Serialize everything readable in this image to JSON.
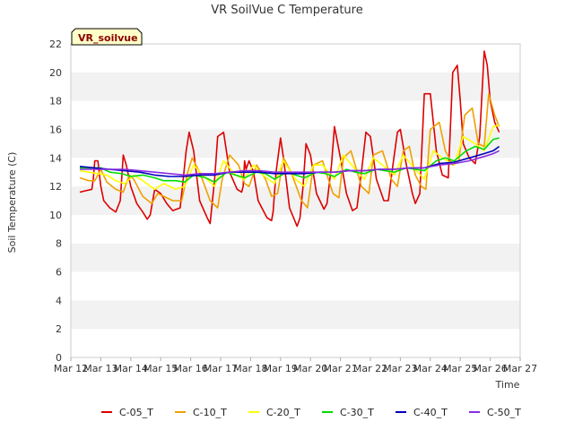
{
  "chart_data": {
    "type": "line",
    "title": "VR SoilVue C Temperature",
    "site_label": "VR_soilvue",
    "xlabel": "Time",
    "ylabel": "Soil Temperature (C)",
    "ylim": [
      0,
      22
    ],
    "yticks": [
      0,
      2,
      4,
      6,
      8,
      10,
      12,
      14,
      16,
      18,
      20,
      22
    ],
    "xlim": [
      12,
      27
    ],
    "x_unit": "day of March",
    "xtick_values": [
      12,
      13,
      14,
      15,
      16,
      17,
      18,
      19,
      20,
      21,
      22,
      23,
      24,
      25,
      26,
      27
    ],
    "xtick_labels": [
      "Mar 12",
      "Mar 13",
      "Mar 14",
      "Mar 15",
      "Mar 16",
      "Mar 17",
      "Mar 18",
      "Mar 19",
      "Mar 20",
      "Mar 21",
      "Mar 22",
      "Mar 23",
      "Mar 24",
      "Mar 25",
      "Mar 26",
      "Mar 27"
    ],
    "grid": "horizontal bands",
    "legend_position": "bottom",
    "series": [
      {
        "name": "C-05_T",
        "color": "#dd0000",
        "x": [
          12.3,
          12.5,
          12.7,
          12.75,
          12.8,
          12.9,
          13.0,
          13.1,
          13.3,
          13.5,
          13.65,
          13.75,
          13.85,
          14.0,
          14.2,
          14.4,
          14.55,
          14.65,
          14.8,
          15.0,
          15.2,
          15.4,
          15.65,
          15.85,
          15.95,
          16.1,
          16.3,
          16.55,
          16.65,
          16.8,
          16.9,
          17.1,
          17.3,
          17.55,
          17.7,
          17.75,
          17.8,
          17.85,
          17.95,
          18.1,
          18.25,
          18.45,
          18.55,
          18.7,
          18.75,
          18.85,
          19.0,
          19.1,
          19.3,
          19.55,
          19.65,
          19.75,
          19.85,
          20.0,
          20.2,
          20.45,
          20.55,
          20.7,
          20.8,
          21.0,
          21.2,
          21.4,
          21.55,
          21.7,
          21.85,
          22.0,
          22.2,
          22.45,
          22.6,
          22.75,
          22.9,
          23.0,
          23.2,
          23.4,
          23.5,
          23.65,
          23.8,
          24.0,
          24.2,
          24.4,
          24.6,
          24.75,
          24.9,
          25.0,
          25.1,
          25.3,
          25.5,
          25.65,
          25.8,
          25.9,
          26.0,
          26.15,
          26.3
        ],
        "values": [
          11.6,
          11.7,
          11.8,
          12.5,
          13.8,
          13.8,
          12.0,
          11.0,
          10.5,
          10.2,
          11.0,
          14.2,
          13.5,
          12.0,
          10.8,
          10.2,
          9.7,
          10.0,
          11.8,
          11.5,
          10.8,
          10.3,
          10.5,
          14.5,
          15.8,
          14.5,
          11.0,
          9.8,
          9.4,
          12.5,
          15.5,
          15.8,
          13.0,
          11.8,
          11.6,
          12.0,
          13.8,
          13.2,
          13.8,
          13.0,
          11.0,
          10.2,
          9.8,
          9.6,
          10.2,
          13.0,
          15.4,
          14.0,
          10.5,
          9.2,
          9.8,
          12.0,
          15.0,
          14.2,
          11.5,
          10.4,
          10.8,
          13.5,
          16.2,
          14.0,
          11.5,
          10.3,
          10.5,
          13.0,
          15.8,
          15.5,
          12.5,
          11.0,
          11.0,
          13.5,
          15.8,
          16.0,
          13.5,
          11.5,
          10.8,
          11.5,
          18.5,
          18.5,
          14.5,
          12.8,
          12.6,
          20.0,
          20.5,
          18.0,
          15.0,
          14.0,
          13.6,
          15.5,
          21.5,
          20.5,
          18.0,
          16.5,
          15.8
        ]
      },
      {
        "name": "C-10_T",
        "color": "#f0a000",
        "x": [
          12.3,
          12.6,
          12.8,
          13.0,
          13.2,
          13.5,
          13.75,
          13.95,
          14.1,
          14.4,
          14.7,
          14.9,
          15.1,
          15.4,
          15.7,
          15.9,
          16.05,
          16.3,
          16.65,
          16.9,
          17.05,
          17.3,
          17.6,
          17.8,
          17.95,
          18.2,
          18.5,
          18.7,
          18.9,
          19.1,
          19.35,
          19.7,
          19.9,
          20.1,
          20.4,
          20.75,
          20.95,
          21.1,
          21.35,
          21.7,
          21.95,
          22.1,
          22.4,
          22.7,
          22.9,
          23.1,
          23.3,
          23.5,
          23.7,
          23.85,
          24.0,
          24.3,
          24.5,
          24.75,
          24.95,
          25.15,
          25.4,
          25.6,
          25.8,
          25.95,
          26.15,
          26.3
        ],
        "values": [
          12.6,
          12.4,
          12.4,
          13.2,
          12.3,
          11.8,
          11.6,
          12.8,
          12.5,
          11.3,
          10.8,
          11.5,
          11.3,
          11.0,
          11.0,
          13.0,
          14.0,
          13.0,
          11.0,
          10.5,
          12.5,
          14.2,
          13.5,
          12.2,
          12.0,
          13.5,
          12.5,
          11.3,
          11.5,
          14.0,
          13.0,
          11.0,
          10.5,
          13.5,
          13.8,
          11.5,
          11.2,
          14.0,
          14.5,
          12.0,
          11.5,
          14.2,
          14.5,
          12.5,
          12.0,
          14.5,
          14.8,
          12.8,
          12.0,
          11.8,
          16.0,
          16.5,
          14.5,
          13.5,
          13.8,
          17.0,
          17.5,
          15.0,
          14.8,
          18.5,
          17.0,
          16.2
        ]
      },
      {
        "name": "C-20_T",
        "color": "#ffff00",
        "x": [
          12.3,
          12.6,
          12.9,
          13.2,
          13.5,
          13.8,
          14.1,
          14.4,
          14.8,
          15.1,
          15.5,
          15.8,
          16.1,
          16.4,
          16.8,
          17.1,
          17.5,
          17.8,
          18.1,
          18.4,
          18.8,
          19.1,
          19.5,
          19.8,
          20.1,
          20.4,
          20.8,
          21.1,
          21.5,
          21.8,
          22.1,
          22.4,
          22.8,
          23.1,
          23.5,
          23.8,
          24.1,
          24.4,
          24.8,
          25.1,
          25.5,
          25.8,
          26.1,
          26.3
        ],
        "values": [
          13.1,
          13.0,
          12.9,
          12.8,
          12.4,
          12.2,
          12.8,
          12.4,
          11.8,
          12.2,
          11.8,
          12.0,
          13.5,
          12.8,
          12.0,
          13.8,
          12.8,
          12.5,
          13.5,
          12.8,
          12.2,
          13.8,
          12.5,
          12.0,
          13.5,
          13.5,
          12.5,
          14.2,
          13.2,
          12.5,
          14.0,
          13.5,
          12.8,
          14.2,
          13.2,
          12.5,
          14.5,
          14.0,
          13.5,
          15.5,
          15.0,
          14.5,
          16.2,
          16.3
        ]
      },
      {
        "name": "C-30_T",
        "color": "#00dd00",
        "x": [
          12.3,
          12.6,
          13.0,
          13.3,
          13.7,
          14.0,
          14.4,
          14.8,
          15.1,
          15.5,
          15.8,
          16.1,
          16.5,
          16.8,
          17.2,
          17.5,
          17.8,
          18.2,
          18.5,
          18.8,
          19.2,
          19.5,
          19.8,
          20.2,
          20.5,
          20.8,
          21.2,
          21.5,
          21.8,
          22.2,
          22.5,
          22.8,
          23.2,
          23.5,
          23.8,
          24.2,
          24.5,
          24.8,
          25.2,
          25.5,
          25.8,
          26.1,
          26.3
        ],
        "values": [
          13.3,
          13.3,
          13.3,
          13.0,
          12.9,
          12.7,
          12.8,
          12.6,
          12.4,
          12.4,
          12.3,
          12.8,
          12.6,
          12.3,
          13.0,
          12.8,
          12.6,
          13.0,
          12.9,
          12.5,
          13.0,
          12.8,
          12.6,
          13.0,
          12.9,
          12.7,
          13.2,
          13.0,
          12.9,
          13.2,
          13.1,
          13.0,
          13.3,
          13.2,
          13.1,
          13.8,
          14.0,
          13.8,
          14.5,
          14.8,
          14.6,
          15.3,
          15.4
        ]
      },
      {
        "name": "C-40_T",
        "color": "#0000bb",
        "x": [
          12.3,
          12.8,
          13.3,
          13.8,
          14.3,
          14.8,
          15.3,
          15.8,
          16.3,
          16.8,
          17.3,
          17.8,
          18.3,
          18.8,
          19.3,
          19.8,
          20.3,
          20.8,
          21.3,
          21.8,
          22.3,
          22.8,
          23.3,
          23.8,
          24.3,
          24.8,
          25.3,
          25.8,
          26.1,
          26.3
        ],
        "values": [
          13.4,
          13.3,
          13.2,
          13.1,
          13.0,
          12.8,
          12.7,
          12.7,
          12.8,
          12.8,
          13.0,
          13.0,
          13.0,
          12.9,
          12.9,
          12.9,
          13.0,
          13.0,
          13.1,
          13.1,
          13.2,
          13.2,
          13.3,
          13.3,
          13.6,
          13.7,
          14.0,
          14.3,
          14.5,
          14.8
        ]
      },
      {
        "name": "C-50_T",
        "color": "#8a2be2",
        "x": [
          12.3,
          12.8,
          13.3,
          13.8,
          14.3,
          14.8,
          15.3,
          15.8,
          16.3,
          16.8,
          17.3,
          17.8,
          18.3,
          18.8,
          19.3,
          19.8,
          20.3,
          20.8,
          21.3,
          21.8,
          22.3,
          22.8,
          23.3,
          23.8,
          24.3,
          24.8,
          25.3,
          25.8,
          26.1,
          26.3
        ],
        "values": [
          13.2,
          13.2,
          13.2,
          13.2,
          13.1,
          13.0,
          12.9,
          12.8,
          12.9,
          12.9,
          13.0,
          13.1,
          13.1,
          13.0,
          13.0,
          13.0,
          13.0,
          13.0,
          13.1,
          13.1,
          13.2,
          13.2,
          13.3,
          13.3,
          13.5,
          13.6,
          13.8,
          14.1,
          14.3,
          14.5
        ]
      }
    ]
  }
}
